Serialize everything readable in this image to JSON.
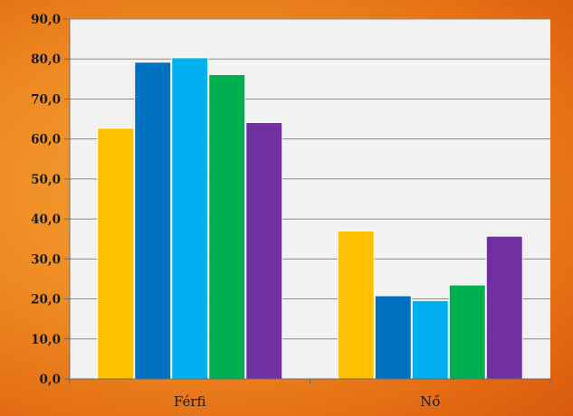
{
  "chart_data": {
    "type": "bar",
    "categories": [
      "Férfi",
      "Nő"
    ],
    "series": [
      {
        "color": "#FFC000",
        "values": [
          62.7,
          37.0
        ]
      },
      {
        "color": "#0070C0",
        "values": [
          79.2,
          20.8
        ]
      },
      {
        "color": "#00B0F0",
        "values": [
          80.3,
          19.6
        ]
      },
      {
        "color": "#00B050",
        "values": [
          76.1,
          23.5
        ]
      },
      {
        "color": "#7030A0",
        "values": [
          64.1,
          35.7
        ]
      }
    ],
    "yticks": [
      "0,0",
      "10,0",
      "20,0",
      "30,0",
      "40,0",
      "50,0",
      "60,0",
      "70,0",
      "80,0",
      "90,0"
    ],
    "ylim": [
      0,
      90
    ],
    "grid": true,
    "plot_background": "#F2F2F2"
  }
}
